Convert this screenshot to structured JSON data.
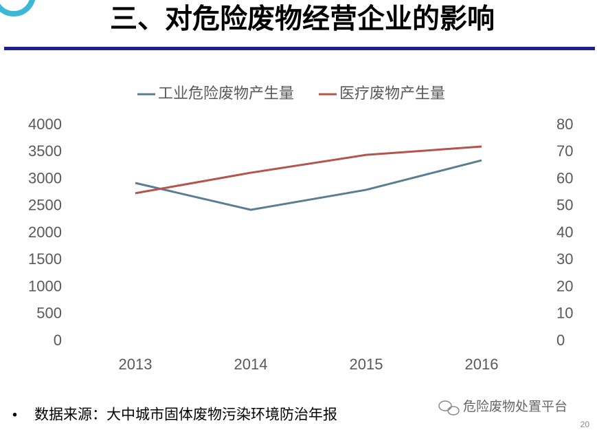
{
  "chart_data": {
    "type": "line",
    "title": "三、对危险废物经营企业的影响",
    "categories": [
      "2013",
      "2014",
      "2015",
      "2016"
    ],
    "series": [
      {
        "name": "工业危险废物产生量",
        "color": "#5b7d92",
        "values": [
          2930,
          2433,
          2803,
          3350
        ]
      },
      {
        "name": "医疗废物产生量",
        "color": "#b5544a",
        "values": [
          54.8,
          62.4,
          69,
          72.1
        ],
        "axis": "y2"
      }
    ],
    "ylim": [
      0,
      4000
    ],
    "yticks": [
      0,
      500,
      1000,
      1500,
      2000,
      2500,
      3000,
      3500,
      4000
    ],
    "y2lim": [
      0,
      80
    ],
    "y2ticks": [
      0,
      10,
      20,
      30,
      40,
      50,
      60,
      70,
      80
    ],
    "grid": false,
    "legend": "top"
  },
  "source": "数据来源：大中城市固体废物污染环境防治年报",
  "watermark": "危险废物处置平台",
  "page_number": "20"
}
